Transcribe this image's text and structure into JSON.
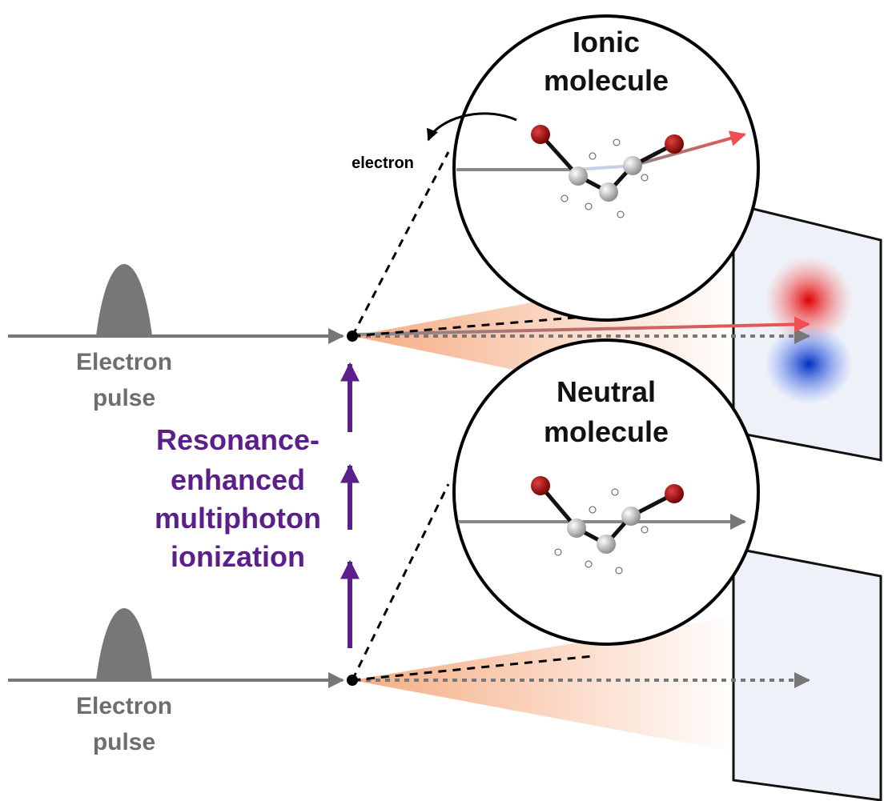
{
  "top_molecule": {
    "lines": [
      "Ionic",
      "molecule"
    ]
  },
  "electron_label": "electron",
  "top_pulse": {
    "lines": [
      "Electron",
      "pulse"
    ]
  },
  "process": {
    "lines": [
      "Resonance-",
      "enhanced",
      "multiphoton",
      "ionization"
    ]
  },
  "bottom_molecule": {
    "lines": [
      "Neutral",
      "molecule"
    ]
  },
  "bottom_pulse": {
    "lines": [
      "Electron",
      "pulse"
    ]
  }
}
